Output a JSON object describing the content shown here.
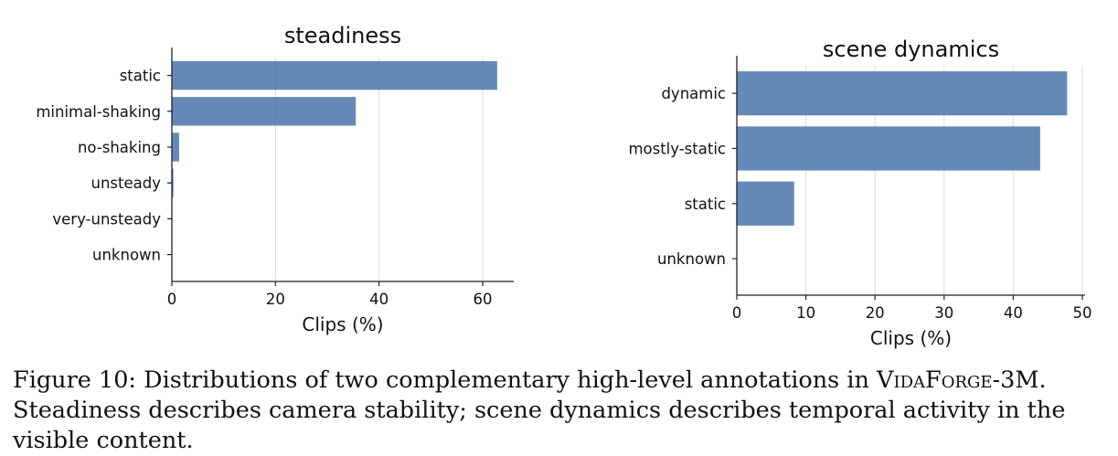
{
  "chart_data": [
    {
      "type": "bar",
      "orientation": "horizontal",
      "title": "steadiness",
      "xlabel": "Clips (%)",
      "ylabel": "",
      "categories": [
        "static",
        "minimal-shaking",
        "no-shaking",
        "unsteady",
        "very-unsteady",
        "unknown"
      ],
      "values": [
        62.8,
        35.5,
        1.4,
        0.3,
        0.05,
        0.02
      ],
      "xlim": [
        0,
        66
      ],
      "xticks": [
        0,
        20,
        40,
        60
      ],
      "grid": "vertical",
      "bar_color": "#4a74a9"
    },
    {
      "type": "bar",
      "orientation": "horizontal",
      "title": "scene dynamics",
      "xlabel": "Clips (%)",
      "ylabel": "",
      "categories": [
        "dynamic",
        "mostly-static",
        "static",
        "unknown"
      ],
      "values": [
        47.8,
        43.9,
        8.3,
        0.02
      ],
      "xlim": [
        0,
        50.4
      ],
      "xticks": [
        0,
        10,
        20,
        30,
        40,
        50
      ],
      "grid": "vertical",
      "bar_color": "#4a74a9"
    }
  ],
  "caption": {
    "lead": "Figure 10: Distributions of two complementary high-level annotations in ",
    "name_v": "V",
    "name_ida": "ida",
    "name_f": "F",
    "name_orge": "orge",
    "name_suffix": "-3M",
    "rest": ". Steadiness describes camera stability; scene dynamics describes temporal activity in the visible content."
  }
}
